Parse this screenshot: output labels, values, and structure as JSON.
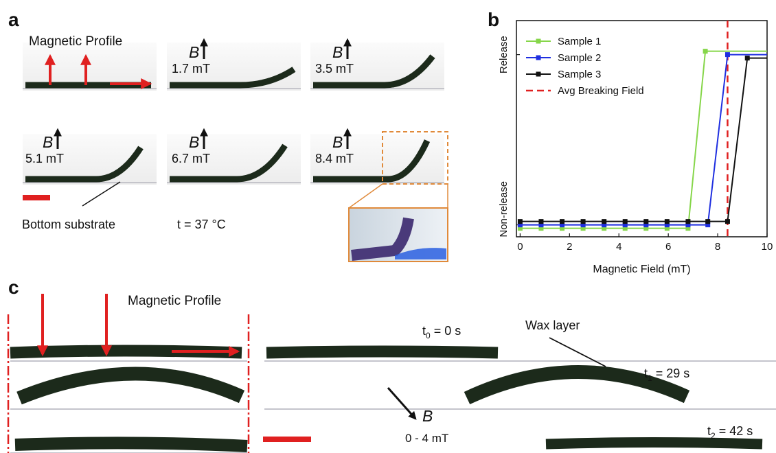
{
  "panel_labels": [
    "a",
    "b",
    "c"
  ],
  "panel_a": {
    "profile_label": "Magnetic Profile",
    "field_symbol": "B",
    "fields": [
      "1.7 mT",
      "3.5 mT",
      "5.1 mT",
      "6.7 mT",
      "8.4 mT"
    ],
    "substrate_label": "Bottom substrate",
    "temperature": "t = 37 °C"
  },
  "chart_data": {
    "type": "line",
    "xlabel": "Magnetic Field (mT)",
    "xlim": [
      -0.15,
      10
    ],
    "xticks": [
      0,
      2,
      4,
      6,
      8,
      10
    ],
    "ylim": [
      -0.07,
      1.2
    ],
    "yticks": [
      {
        "value": 0,
        "label": "Non-release"
      },
      {
        "value": 1,
        "label": "Release"
      }
    ],
    "legend": "upper left",
    "series": [
      {
        "name": "Sample 1",
        "color": "#86d64a",
        "x": [
          0,
          0.85,
          1.7,
          2.55,
          3.4,
          4.25,
          5.1,
          5.95,
          6.8,
          7.5
        ],
        "values": [
          0,
          0,
          0,
          0,
          0,
          0,
          0,
          0,
          0,
          1
        ]
      },
      {
        "name": "Sample 2",
        "color": "#1f2fe0",
        "x": [
          0,
          0.85,
          1.7,
          2.55,
          3.4,
          4.25,
          5.1,
          5.95,
          6.8,
          7.6,
          8.4
        ],
        "values": [
          0,
          0,
          0,
          0,
          0,
          0,
          0,
          0,
          0,
          0,
          1
        ]
      },
      {
        "name": "Sample 3",
        "color": "#111111",
        "x": [
          0,
          0.85,
          1.7,
          2.55,
          3.4,
          4.25,
          5.1,
          5.95,
          6.8,
          7.6,
          8.4,
          9.2
        ],
        "values": [
          0,
          0,
          0,
          0,
          0,
          0,
          0,
          0,
          0,
          0,
          0,
          1
        ]
      }
    ],
    "reference_lines": [
      {
        "name": "Avg Breaking Field",
        "x": 8.4,
        "color": "#e02020"
      }
    ]
  },
  "panel_c": {
    "profile_label": "Magnetic Profile",
    "times": [
      {
        "base": "t",
        "sub": "0",
        "rest": " = 0 s"
      },
      {
        "base": "t",
        "sub": "1",
        "rest": " = 29 s"
      },
      {
        "base": "t",
        "sub": "2",
        "rest": " = 42 s"
      }
    ],
    "wax_label": "Wax layer",
    "field_symbol": "B",
    "field_range": "0 - 4 mT"
  }
}
